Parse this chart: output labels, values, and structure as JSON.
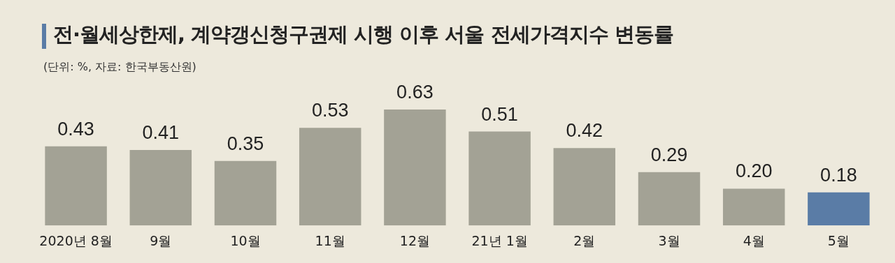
{
  "chart_data": {
    "type": "bar",
    "title": "전·월세상한제, 계약갱신청구권제 시행 이후 서울 전세가격지수 변동률",
    "subtitle": "(단위: %, 자료: 한국부동산원)",
    "categories": [
      "2020년 8월",
      "9월",
      "10월",
      "11월",
      "12월",
      "21년 1월",
      "2월",
      "3월",
      "4월",
      "5월"
    ],
    "values": [
      0.43,
      0.41,
      0.35,
      0.53,
      0.63,
      0.51,
      0.42,
      0.29,
      0.2,
      0.18
    ],
    "value_labels": [
      "0.43",
      "0.41",
      "0.35",
      "0.53",
      "0.63",
      "0.51",
      "0.42",
      "0.29",
      "0.20",
      "0.18"
    ],
    "colors": [
      "#a3a295",
      "#a3a295",
      "#a3a295",
      "#a3a295",
      "#a3a295",
      "#a3a295",
      "#a3a295",
      "#a3a295",
      "#a3a295",
      "#5a7ca6"
    ],
    "relative": false,
    "legend": false,
    "grid": false
  }
}
